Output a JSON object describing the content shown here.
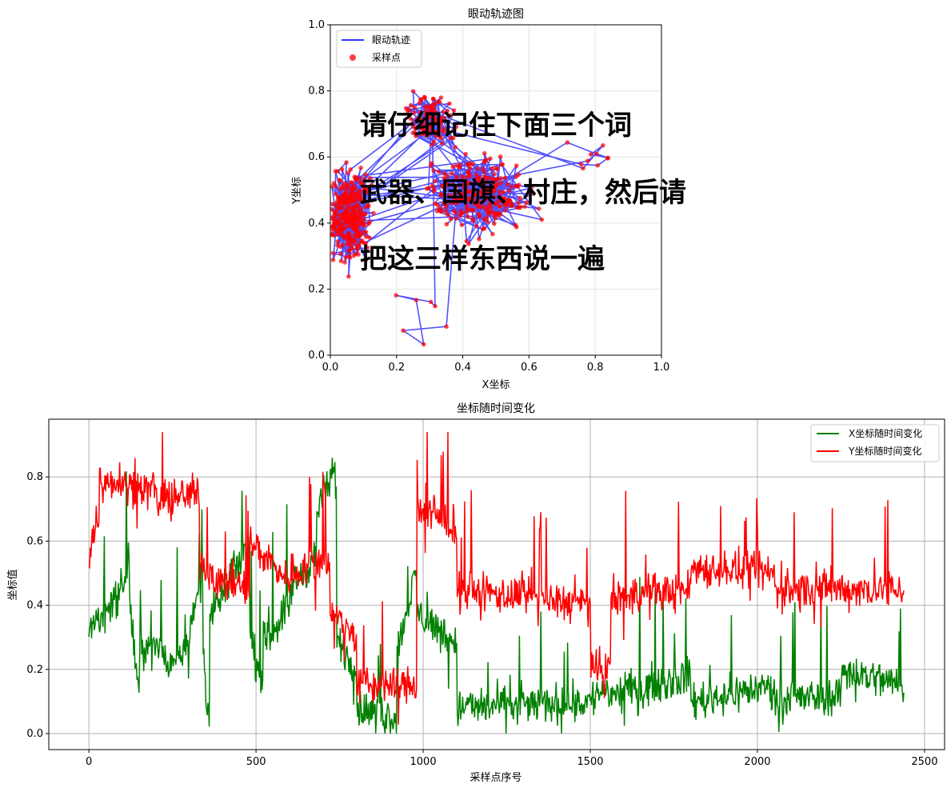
{
  "charts": {
    "top": {
      "title": "眼动轨迹图",
      "xlabel": "X坐标",
      "ylabel": "Y坐标",
      "xticks": [
        "0.0",
        "0.2",
        "0.4",
        "0.6",
        "0.8",
        "1.0"
      ],
      "yticks": [
        "0.0",
        "0.2",
        "0.4",
        "0.6",
        "0.8",
        "1.0"
      ],
      "legend": [
        "眼动轨迹",
        "采样点"
      ],
      "overlay_lines": [
        "请仔细记住下面三个词",
        "武器、国旗、村庄，然后请",
        "把这三样东西说一遍"
      ]
    },
    "bottom": {
      "title": "坐标随时间变化",
      "xlabel": "采样点序号",
      "ylabel": "坐标值",
      "xticks": [
        "0",
        "500",
        "1000",
        "1500",
        "2000",
        "2500"
      ],
      "yticks": [
        "0.0",
        "0.2",
        "0.4",
        "0.6",
        "0.8"
      ],
      "legend": [
        "X坐标随时间变化",
        "Y坐标随时间变化"
      ]
    }
  },
  "colors": {
    "trajectory": "#3333ff",
    "samples": "#ff0000",
    "x_series": "#008000",
    "y_series": "#ff0000"
  },
  "chart_data": [
    {
      "type": "scatter",
      "title": "眼动轨迹图",
      "xlabel": "X坐标",
      "ylabel": "Y坐标",
      "xlim": [
        0,
        1
      ],
      "ylim": [
        0,
        1
      ],
      "grid": true,
      "legend_position": "top-left",
      "series": [
        {
          "name": "眼动轨迹",
          "style": "line"
        },
        {
          "name": "采样点",
          "style": "markers"
        }
      ],
      "clusters": [
        {
          "cx": 0.06,
          "cy": 0.42,
          "spread": [
            0.05,
            0.12
          ]
        },
        {
          "cx": 0.3,
          "cy": 0.72,
          "spread": [
            0.07,
            0.07
          ]
        },
        {
          "cx": 0.45,
          "cy": 0.48,
          "spread": [
            0.14,
            0.1
          ]
        },
        {
          "cx": 0.78,
          "cy": 0.6,
          "spread": [
            0.06,
            0.05
          ]
        },
        {
          "cx": 0.3,
          "cy": 0.12,
          "spread": [
            0.12,
            0.06
          ]
        }
      ],
      "n_points": 2440
    },
    {
      "type": "line",
      "title": "坐标随时间变化",
      "xlabel": "采样点序号",
      "ylabel": "坐标值",
      "xlim": [
        -120,
        2560
      ],
      "ylim": [
        -0.05,
        0.98
      ],
      "grid": true,
      "legend_position": "top-right",
      "n_points": 2440,
      "series": [
        {
          "name": "X坐标随时间变化",
          "segments": [
            {
              "x": [
                0,
                100
              ],
              "y": [
                0.32,
                0.45
              ]
            },
            {
              "x": [
                100,
                120
              ],
              "y": [
                0.45,
                0.55
              ]
            },
            {
              "x": [
                120,
                150
              ],
              "y": [
                0.45,
                0.1
              ]
            },
            {
              "x": [
                150,
                230
              ],
              "y": [
                0.28,
                0.25
              ]
            },
            {
              "x": [
                230,
                300
              ],
              "y": [
                0.2,
                0.3
              ]
            },
            {
              "x": [
                300,
                340
              ],
              "y": [
                0.3,
                0.5
              ]
            },
            {
              "x": [
                340,
                360
              ],
              "y": [
                0.25,
                0.05
              ]
            },
            {
              "x": [
                360,
                480
              ],
              "y": [
                0.35,
                0.6
              ]
            },
            {
              "x": [
                480,
                520
              ],
              "y": [
                0.3,
                0.15
              ]
            },
            {
              "x": [
                520,
                600
              ],
              "y": [
                0.28,
                0.4
              ]
            },
            {
              "x": [
                600,
                680
              ],
              "y": [
                0.45,
                0.55
              ]
            },
            {
              "x": [
                680,
                740
              ],
              "y": [
                0.7,
                0.82
              ]
            },
            {
              "x": [
                740,
                800
              ],
              "y": [
                0.3,
                0.2
              ]
            },
            {
              "x": [
                800,
                920
              ],
              "y": [
                0.08,
                0.05
              ]
            },
            {
              "x": [
                920,
                980
              ],
              "y": [
                0.25,
                0.5
              ]
            },
            {
              "x": [
                980,
                1100
              ],
              "y": [
                0.38,
                0.28
              ]
            },
            {
              "x": [
                1100,
                1500
              ],
              "y": [
                0.08,
                0.1
              ]
            },
            {
              "x": [
                1500,
                1550
              ],
              "y": [
                0.1,
                0.15
              ]
            },
            {
              "x": [
                1550,
                1800
              ],
              "y": [
                0.12,
                0.18
              ]
            },
            {
              "x": [
                1800,
                2050
              ],
              "y": [
                0.1,
                0.15
              ]
            },
            {
              "x": [
                2050,
                2250
              ],
              "y": [
                0.1,
                0.12
              ]
            },
            {
              "x": [
                2250,
                2440
              ],
              "y": [
                0.2,
                0.15
              ]
            }
          ]
        },
        {
          "name": "Y坐标随时间变化",
          "segments": [
            {
              "x": [
                0,
                30
              ],
              "y": [
                0.55,
                0.7
              ]
            },
            {
              "x": [
                30,
                100
              ],
              "y": [
                0.78,
                0.8
              ]
            },
            {
              "x": [
                100,
                200
              ],
              "y": [
                0.78,
                0.76
              ]
            },
            {
              "x": [
                200,
                330
              ],
              "y": [
                0.72,
                0.75
              ]
            },
            {
              "x": [
                330,
                370
              ],
              "y": [
                0.55,
                0.5
              ]
            },
            {
              "x": [
                370,
                480
              ],
              "y": [
                0.48,
                0.45
              ]
            },
            {
              "x": [
                480,
                600
              ],
              "y": [
                0.6,
                0.48
              ]
            },
            {
              "x": [
                600,
                720
              ],
              "y": [
                0.5,
                0.55
              ]
            },
            {
              "x": [
                720,
                800
              ],
              "y": [
                0.38,
                0.3
              ]
            },
            {
              "x": [
                800,
                980
              ],
              "y": [
                0.15,
                0.15
              ]
            },
            {
              "x": [
                980,
                1100
              ],
              "y": [
                0.7,
                0.65
              ]
            },
            {
              "x": [
                1100,
                1500
              ],
              "y": [
                0.45,
                0.4
              ]
            },
            {
              "x": [
                1500,
                1560
              ],
              "y": [
                0.18,
                0.2
              ]
            },
            {
              "x": [
                1560,
                1800
              ],
              "y": [
                0.42,
                0.45
              ]
            },
            {
              "x": [
                1800,
                2050
              ],
              "y": [
                0.52,
                0.5
              ]
            },
            {
              "x": [
                2050,
                2440
              ],
              "y": [
                0.45,
                0.45
              ]
            }
          ]
        }
      ]
    }
  ]
}
